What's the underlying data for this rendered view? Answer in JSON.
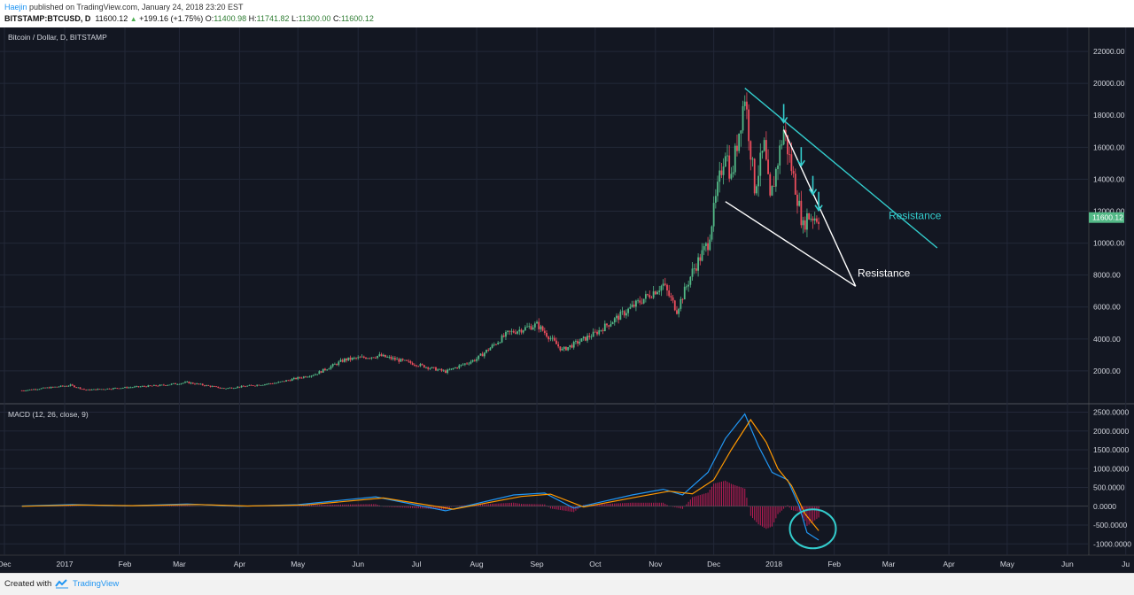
{
  "header": {
    "author": "Haejin",
    "published": "published on TradingView.com, January 24, 2018 23:20 EST",
    "symbol": "BITSTAMP:BTCUSD, D",
    "last": "11600.12",
    "change": "+199.16 (+1.75%)",
    "o_label": "O:",
    "o": "11400.98",
    "h_label": "H:",
    "h": "11741.82",
    "l_label": "L:",
    "l": "11300.00",
    "c_label": "C:",
    "c": "11600.12"
  },
  "footer": {
    "created_with": "Created with",
    "brand": "TradingView"
  },
  "colors": {
    "bg": "#131722",
    "up": "#53b987",
    "down": "#eb4d5c",
    "cyan": "#33cccc",
    "macd": "#2196f3",
    "signal": "#ff9800",
    "hist": "#e91e63"
  },
  "chart_data": [
    {
      "type": "candlestick",
      "title": "Bitcoin / Dollar, D, BITSTAMP",
      "ylim": [
        0,
        23500
      ],
      "y_ticks": [
        "22000.00",
        "20000.00",
        "18000.00",
        "16000.00",
        "14000.00",
        "12000.00",
        "10000.00",
        "8000.00",
        "6000.00",
        "4000.00",
        "2000.00"
      ],
      "last_price_label": "11600.12",
      "anchors": [
        [
          "2016-12-10",
          770
        ],
        [
          "2017-01-04",
          1100
        ],
        [
          "2017-01-12",
          800
        ],
        [
          "2017-02-20",
          1100
        ],
        [
          "2017-03-05",
          1280
        ],
        [
          "2017-03-24",
          900
        ],
        [
          "2017-04-20",
          1250
        ],
        [
          "2017-05-10",
          1800
        ],
        [
          "2017-05-25",
          2700
        ],
        [
          "2017-06-12",
          2950
        ],
        [
          "2017-06-28",
          2500
        ],
        [
          "2017-07-16",
          1950
        ],
        [
          "2017-08-01",
          2750
        ],
        [
          "2017-08-17",
          4350
        ],
        [
          "2017-09-01",
          4900
        ],
        [
          "2017-09-14",
          3300
        ],
        [
          "2017-10-01",
          4350
        ],
        [
          "2017-10-20",
          6000
        ],
        [
          "2017-11-05",
          7400
        ],
        [
          "2017-11-12",
          5800
        ],
        [
          "2017-11-20",
          8200
        ],
        [
          "2017-11-28",
          10000
        ],
        [
          "2017-12-07",
          16000
        ],
        [
          "2017-12-10",
          14000
        ],
        [
          "2017-12-17",
          19300
        ],
        [
          "2017-12-22",
          13500
        ],
        [
          "2017-12-27",
          16000
        ],
        [
          "2017-12-30",
          12600
        ],
        [
          "2018-01-06",
          17100
        ],
        [
          "2018-01-12",
          13500
        ],
        [
          "2018-01-16",
          11000
        ],
        [
          "2018-01-18",
          11700
        ],
        [
          "2018-01-24",
          11600
        ]
      ],
      "annotations": [
        {
          "type": "trendline",
          "color": "#33cccc",
          "from": [
            "2017-12-17",
            19700
          ],
          "to": [
            "2018-03-26",
            9700
          ]
        },
        {
          "type": "trendline",
          "color": "#ffffff",
          "from": [
            "2017-12-07",
            12600
          ],
          "to": [
            "2018-02-12",
            7300
          ]
        },
        {
          "type": "trendline",
          "color": "#ffffff",
          "from": [
            "2018-01-06",
            17100
          ],
          "to": [
            "2018-02-12",
            7300
          ]
        },
        {
          "type": "text",
          "color": "#33cccc",
          "label": "Resistance",
          "at": [
            "2018-03-01",
            11500
          ]
        },
        {
          "type": "text",
          "color": "#ffffff",
          "label": "Resistance",
          "at": [
            "2018-02-13",
            7900
          ]
        },
        {
          "type": "arrow",
          "color": "#33cccc",
          "at": [
            "2018-01-06",
            17600
          ]
        },
        {
          "type": "arrow",
          "color": "#33cccc",
          "at": [
            "2018-01-15",
            14900
          ]
        },
        {
          "type": "arrow",
          "color": "#33cccc",
          "at": [
            "2018-01-21",
            13100
          ]
        },
        {
          "type": "arrow",
          "color": "#33cccc",
          "at": [
            "2018-01-24",
            12100
          ]
        }
      ]
    },
    {
      "type": "line",
      "title": "MACD (12, 26, close, 9)",
      "ylim": [
        -1300,
        2700
      ],
      "y_ticks": [
        "2500.0000",
        "2000.0000",
        "1500.0000",
        "1000.0000",
        "500.0000",
        "0.0000",
        "-500.0000",
        "-1000.0000"
      ],
      "series": [
        {
          "name": "MACD",
          "color": "#2196f3",
          "points": [
            [
              "2016-12-10",
              5
            ],
            [
              "2017-01-05",
              45
            ],
            [
              "2017-02-01",
              10
            ],
            [
              "2017-03-05",
              60
            ],
            [
              "2017-04-01",
              0
            ],
            [
              "2017-05-01",
              40
            ],
            [
              "2017-06-10",
              250
            ],
            [
              "2017-07-16",
              -120
            ],
            [
              "2017-08-20",
              300
            ],
            [
              "2017-09-05",
              350
            ],
            [
              "2017-09-20",
              -50
            ],
            [
              "2017-10-20",
              300
            ],
            [
              "2017-11-05",
              450
            ],
            [
              "2017-11-15",
              300
            ],
            [
              "2017-11-28",
              900
            ],
            [
              "2017-12-07",
              1800
            ],
            [
              "2017-12-17",
              2450
            ],
            [
              "2017-12-24",
              1600
            ],
            [
              "2017-12-31",
              900
            ],
            [
              "2018-01-08",
              700
            ],
            [
              "2018-01-14",
              0
            ],
            [
              "2018-01-18",
              -700
            ],
            [
              "2018-01-24",
              -900
            ]
          ]
        },
        {
          "name": "Signal",
          "color": "#ff9800",
          "points": [
            [
              "2016-12-10",
              0
            ],
            [
              "2017-01-08",
              35
            ],
            [
              "2017-02-05",
              15
            ],
            [
              "2017-03-10",
              45
            ],
            [
              "2017-04-05",
              5
            ],
            [
              "2017-05-05",
              35
            ],
            [
              "2017-06-14",
              220
            ],
            [
              "2017-07-20",
              -80
            ],
            [
              "2017-08-24",
              260
            ],
            [
              "2017-09-08",
              320
            ],
            [
              "2017-09-25",
              -20
            ],
            [
              "2017-10-24",
              260
            ],
            [
              "2017-11-08",
              400
            ],
            [
              "2017-11-20",
              330
            ],
            [
              "2017-12-01",
              700
            ],
            [
              "2017-12-10",
              1500
            ],
            [
              "2017-12-20",
              2300
            ],
            [
              "2017-12-28",
              1700
            ],
            [
              "2018-01-03",
              1000
            ],
            [
              "2018-01-10",
              550
            ],
            [
              "2018-01-17",
              -200
            ],
            [
              "2018-01-24",
              -650
            ]
          ]
        }
      ],
      "histogram_color": "#e91e63",
      "highlight_circle": {
        "color": "#33cccc",
        "at": [
          "2018-01-21",
          -600
        ]
      }
    }
  ],
  "x_axis": [
    "Dec",
    "2017",
    "Feb",
    "Mar",
    "Apr",
    "May",
    "Jun",
    "Jul",
    "Aug",
    "Sep",
    "Oct",
    "Nov",
    "Dec",
    "2018",
    "Feb",
    "Mar",
    "Apr",
    "May",
    "Jun",
    "Ju"
  ]
}
